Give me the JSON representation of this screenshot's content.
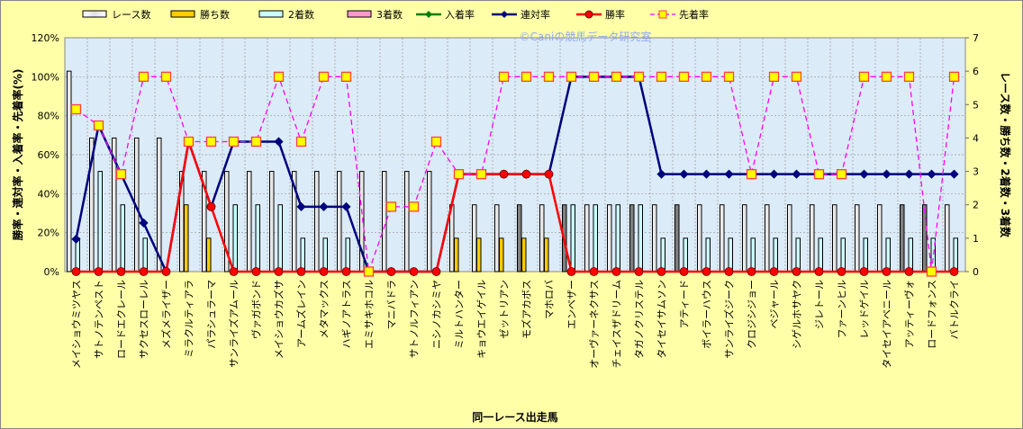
{
  "chart_data": {
    "type": "bar+line",
    "title": "",
    "watermark": "©Caniの競馬データ研究室",
    "xlabel": "同一レース出走馬",
    "ylabel_left": "勝率・連対率・入着率・先着率(%)",
    "ylabel_right": "レース数・勝ち数・2着数・3着数",
    "ylim_left": [
      0,
      120
    ],
    "ylim_right": [
      0,
      7
    ],
    "yticks_left": [
      "0%",
      "20%",
      "40%",
      "60%",
      "80%",
      "100%",
      "120%"
    ],
    "yticks_right": [
      "0",
      "1",
      "2",
      "3",
      "4",
      "5",
      "6",
      "7"
    ],
    "grid": true,
    "legend_position": "top",
    "legend": [
      "レース数",
      "勝ち数",
      "2着数",
      "3着数",
      "入着率",
      "連対率",
      "勝率",
      "先着率"
    ],
    "colors": {
      "races": "#E8E8E8",
      "races_dark": "#808080",
      "wins": "#FFCC00",
      "seconds": "#CCFFFF",
      "thirds": "#FF99CC",
      "place_rate": "#008000",
      "rentai_rate": "#000080",
      "win_rate": "#FF0000",
      "senchaku_rate": "#FF00FF",
      "background": "#FFFFA8",
      "plot": "#DCEBF8"
    },
    "categories": [
      "メイショウミツヤス",
      "サトノテンペスト",
      "ロードエクレール",
      "サクセスローレル",
      "メズメライザー",
      "ミラクルティアラ",
      "パラシュラーマ",
      "サンライズアムール",
      "ヴァガボンド",
      "メイショウカズサ",
      "アームズレイン",
      "メタマックス",
      "ハギノアトラス",
      "エミサキホコル",
      "マニバドラ",
      "サトノルフィアン",
      "ニシノカシミヤ",
      "ミルトハンター",
      "キョウエイゲイル",
      "ゼットリアン",
      "モズアカボス",
      "マホロバ",
      "エンベザー",
      "オーヴァーネクサス",
      "チェイスザドリーム",
      "タガノクリステル",
      "タイセイサムソン",
      "アティード",
      "ボイラーハウス",
      "サンライズジーク",
      "クロジシジョー",
      "ベジャール",
      "シゲルホサヤク",
      "ジレトール",
      "ファーンヒル",
      "レッドゲイル",
      "タイセイアベニール",
      "アッティーヴォ",
      "ロードフォンス",
      "バトルクライ"
    ],
    "series": [
      {
        "name": "レース数",
        "axis": "right",
        "type": "bar",
        "values": [
          6,
          4,
          4,
          4,
          4,
          3,
          3,
          3,
          3,
          3,
          3,
          3,
          3,
          3,
          3,
          3,
          3,
          2,
          2,
          2,
          2,
          2,
          2,
          2,
          2,
          2,
          2,
          2,
          2,
          2,
          2,
          2,
          2,
          2,
          2,
          2,
          2,
          2,
          2,
          2
        ]
      },
      {
        "name": "レース数_dark",
        "axis": "right",
        "type": "flag",
        "values": [
          0,
          0,
          0,
          0,
          0,
          0,
          0,
          0,
          0,
          0,
          0,
          0,
          0,
          0,
          0,
          0,
          0,
          0,
          0,
          0,
          1,
          0,
          1,
          0,
          0,
          1,
          0,
          1,
          0,
          0,
          0,
          0,
          0,
          0,
          0,
          0,
          0,
          1,
          1,
          0
        ]
      },
      {
        "name": "勝ち数",
        "axis": "right",
        "type": "bar",
        "values": [
          0,
          0,
          0,
          0,
          0,
          2,
          1,
          0,
          0,
          0,
          0,
          0,
          0,
          0,
          0,
          0,
          0,
          1,
          1,
          1,
          1,
          1,
          0,
          0,
          0,
          0,
          0,
          0,
          0,
          0,
          0,
          0,
          0,
          0,
          0,
          0,
          0,
          0,
          0,
          0
        ]
      },
      {
        "name": "2着数",
        "axis": "right",
        "type": "bar",
        "values": [
          1,
          3,
          2,
          1,
          0,
          0,
          0,
          2,
          2,
          2,
          1,
          1,
          1,
          0,
          0,
          0,
          0,
          0,
          0,
          0,
          0,
          0,
          2,
          2,
          2,
          2,
          1,
          1,
          1,
          1,
          1,
          1,
          1,
          1,
          1,
          1,
          1,
          1,
          1,
          1
        ]
      },
      {
        "name": "3着数",
        "axis": "right",
        "type": "bar",
        "values": [
          0,
          0,
          0,
          0,
          0,
          0,
          0,
          0,
          0,
          0,
          0,
          0,
          0,
          0,
          0,
          0,
          0,
          0,
          0,
          0,
          0,
          0,
          0,
          0,
          0,
          0,
          0,
          0,
          0,
          0,
          0,
          0,
          0,
          0,
          0,
          0,
          0,
          0,
          0,
          0
        ]
      },
      {
        "name": "入着率",
        "axis": "left",
        "type": "line",
        "values": [
          16.7,
          75,
          50,
          25,
          0,
          66.7,
          33.3,
          66.7,
          66.7,
          66.7,
          33.3,
          33.3,
          33.3,
          0,
          0,
          0,
          0,
          50,
          50,
          50,
          50,
          50,
          100,
          100,
          100,
          100,
          50,
          50,
          50,
          50,
          50,
          50,
          50,
          50,
          50,
          50,
          50,
          50,
          50,
          50
        ]
      },
      {
        "name": "連対率",
        "axis": "left",
        "type": "line",
        "values": [
          16.7,
          75,
          50,
          25,
          0,
          66.7,
          33.3,
          66.7,
          66.7,
          66.7,
          33.3,
          33.3,
          33.3,
          0,
          0,
          0,
          0,
          50,
          50,
          50,
          50,
          50,
          100,
          100,
          100,
          100,
          50,
          50,
          50,
          50,
          50,
          50,
          50,
          50,
          50,
          50,
          50,
          50,
          50,
          50
        ]
      },
      {
        "name": "勝率",
        "axis": "left",
        "type": "line",
        "values": [
          0,
          0,
          0,
          0,
          0,
          66.7,
          33.3,
          0,
          0,
          0,
          0,
          0,
          0,
          0,
          0,
          0,
          0,
          50,
          50,
          50,
          50,
          50,
          0,
          0,
          0,
          0,
          0,
          0,
          0,
          0,
          0,
          0,
          0,
          0,
          0,
          0,
          0,
          0,
          0,
          0
        ]
      },
      {
        "name": "先着率",
        "axis": "left",
        "type": "line",
        "values": [
          83.3,
          75,
          50,
          100,
          100,
          66.7,
          66.7,
          66.7,
          66.7,
          100,
          66.7,
          100,
          100,
          0,
          33.3,
          33.3,
          66.7,
          50,
          50,
          100,
          100,
          100,
          100,
          100,
          100,
          100,
          100,
          100,
          100,
          100,
          50,
          100,
          100,
          50,
          50,
          100,
          100,
          100,
          0,
          100
        ]
      }
    ]
  }
}
